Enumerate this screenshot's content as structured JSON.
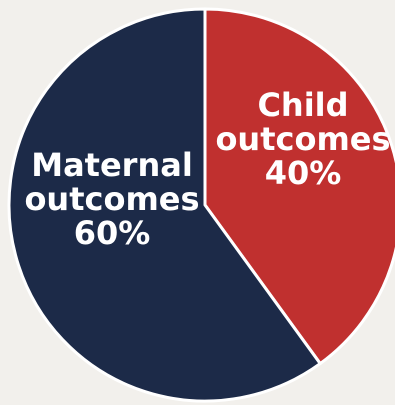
{
  "chart_data": {
    "type": "pie",
    "slices": [
      {
        "label": "Child outcomes",
        "value": 40,
        "label_lines": [
          "Child",
          "outcomes",
          "40%"
        ],
        "color": "#c0302f"
      },
      {
        "label": "Maternal outcomes",
        "value": 60,
        "label_lines": [
          "Maternal",
          "outcomes",
          "60%"
        ],
        "color": "#1c2a48"
      }
    ],
    "start": "12 o'clock",
    "direction": "clockwise",
    "background_color": "#f2f0ec",
    "divider_color": "#ffffff"
  }
}
